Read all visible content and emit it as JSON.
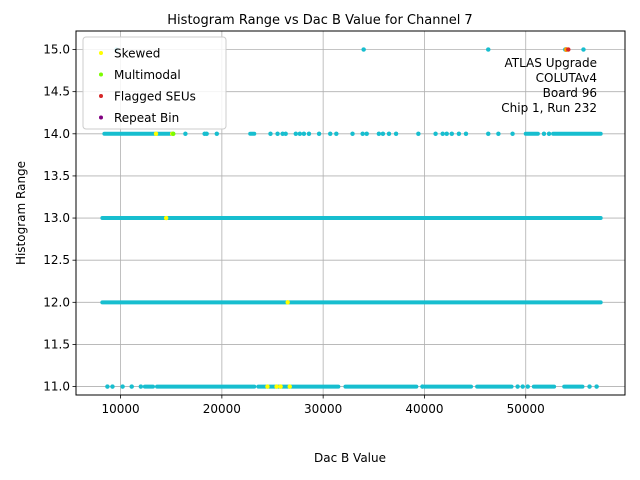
{
  "chart_data": {
    "type": "scatter",
    "title": "Histogram Range vs Dac B Value for Channel 7",
    "xlabel": "Dac B Value",
    "ylabel": "Histogram Range",
    "xlim": [
      5600,
      59800
    ],
    "ylim": [
      10.9,
      15.22
    ],
    "x_ticks": [
      10000,
      20000,
      30000,
      40000,
      50000
    ],
    "x_tick_labels": [
      "10000",
      "20000",
      "30000",
      "40000",
      "50000"
    ],
    "y_ticks": [
      11.0,
      11.5,
      12.0,
      12.5,
      13.0,
      13.5,
      14.0,
      14.5,
      15.0
    ],
    "y_tick_labels": [
      "11.0",
      "11.5",
      "12.0",
      "12.5",
      "13.0",
      "13.5",
      "14.0",
      "14.5",
      "15.0"
    ],
    "grid": true,
    "legend_position": "upper-left",
    "base_color": "#17becf",
    "dense_bands": [
      {
        "y": 12,
        "x_start": 8200,
        "x_end": 57400
      },
      {
        "y": 13,
        "x_start": 8200,
        "x_end": 57400
      }
    ],
    "segments": [
      {
        "y": 14,
        "x_start": 8400,
        "x_end": 15200
      },
      {
        "y": 14,
        "x_start": 22800,
        "x_end": 23200
      },
      {
        "y": 14,
        "x_start": 50000,
        "x_end": 51200
      },
      {
        "y": 14,
        "x_start": 52700,
        "x_end": 57400
      },
      {
        "y": 11,
        "x_start": 12400,
        "x_end": 13200
      },
      {
        "y": 11,
        "x_start": 13600,
        "x_end": 23200
      },
      {
        "y": 11,
        "x_start": 23600,
        "x_end": 31500
      },
      {
        "y": 11,
        "x_start": 32200,
        "x_end": 39200
      },
      {
        "y": 11,
        "x_start": 40000,
        "x_end": 44600
      },
      {
        "y": 11,
        "x_start": 45200,
        "x_end": 48600
      },
      {
        "y": 11,
        "x_start": 50800,
        "x_end": 52800
      },
      {
        "y": 11,
        "x_start": 53800,
        "x_end": 55600
      }
    ],
    "points": [
      {
        "x": 9600,
        "y": 15
      },
      {
        "x": 34000,
        "y": 15
      },
      {
        "x": 46300,
        "y": 15
      },
      {
        "x": 53900,
        "y": 15
      },
      {
        "x": 55700,
        "y": 15
      },
      {
        "x": 16400,
        "y": 14
      },
      {
        "x": 18300,
        "y": 14
      },
      {
        "x": 18500,
        "y": 14
      },
      {
        "x": 19500,
        "y": 14
      },
      {
        "x": 24800,
        "y": 14
      },
      {
        "x": 25500,
        "y": 14
      },
      {
        "x": 26000,
        "y": 14
      },
      {
        "x": 26300,
        "y": 14
      },
      {
        "x": 27300,
        "y": 14
      },
      {
        "x": 27700,
        "y": 14
      },
      {
        "x": 28100,
        "y": 14
      },
      {
        "x": 28600,
        "y": 14
      },
      {
        "x": 29600,
        "y": 14
      },
      {
        "x": 30700,
        "y": 14
      },
      {
        "x": 31300,
        "y": 14
      },
      {
        "x": 32900,
        "y": 14
      },
      {
        "x": 33900,
        "y": 14
      },
      {
        "x": 34300,
        "y": 14
      },
      {
        "x": 35500,
        "y": 14
      },
      {
        "x": 35900,
        "y": 14
      },
      {
        "x": 36500,
        "y": 14
      },
      {
        "x": 37200,
        "y": 14
      },
      {
        "x": 39400,
        "y": 14
      },
      {
        "x": 41100,
        "y": 14
      },
      {
        "x": 41800,
        "y": 14
      },
      {
        "x": 42200,
        "y": 14
      },
      {
        "x": 42700,
        "y": 14
      },
      {
        "x": 43400,
        "y": 14
      },
      {
        "x": 44100,
        "y": 14
      },
      {
        "x": 46300,
        "y": 14
      },
      {
        "x": 47300,
        "y": 14
      },
      {
        "x": 48700,
        "y": 14
      },
      {
        "x": 51800,
        "y": 14
      },
      {
        "x": 52300,
        "y": 14
      },
      {
        "x": 8700,
        "y": 11
      },
      {
        "x": 9200,
        "y": 11
      },
      {
        "x": 10200,
        "y": 11
      },
      {
        "x": 11100,
        "y": 11
      },
      {
        "x": 12000,
        "y": 11
      },
      {
        "x": 39800,
        "y": 11
      },
      {
        "x": 49200,
        "y": 11
      },
      {
        "x": 49700,
        "y": 11
      },
      {
        "x": 50200,
        "y": 11
      },
      {
        "x": 56300,
        "y": 11
      },
      {
        "x": 57000,
        "y": 11
      }
    ],
    "series": [
      {
        "name": "Skewed",
        "color": "#ffff00",
        "x": [
          13500,
          14500,
          15100,
          26500,
          24500,
          25400,
          25800,
          26700
        ],
        "y": [
          14,
          13,
          14,
          12,
          11,
          11,
          11,
          11
        ]
      },
      {
        "name": "Multimodal",
        "color": "#7cfc00",
        "x": [
          15200
        ],
        "y": [
          14
        ]
      },
      {
        "name": "Flagged SEUs",
        "color": "#d62728",
        "x": [
          54200
        ],
        "y": [
          15
        ]
      },
      {
        "name": "Repeat Bin",
        "color": "#800080",
        "x": [],
        "y": []
      }
    ],
    "annotation": [
      "ATLAS Upgrade",
      "COLUTAv4",
      "Board 96",
      "Chip 1, Run 232"
    ]
  }
}
